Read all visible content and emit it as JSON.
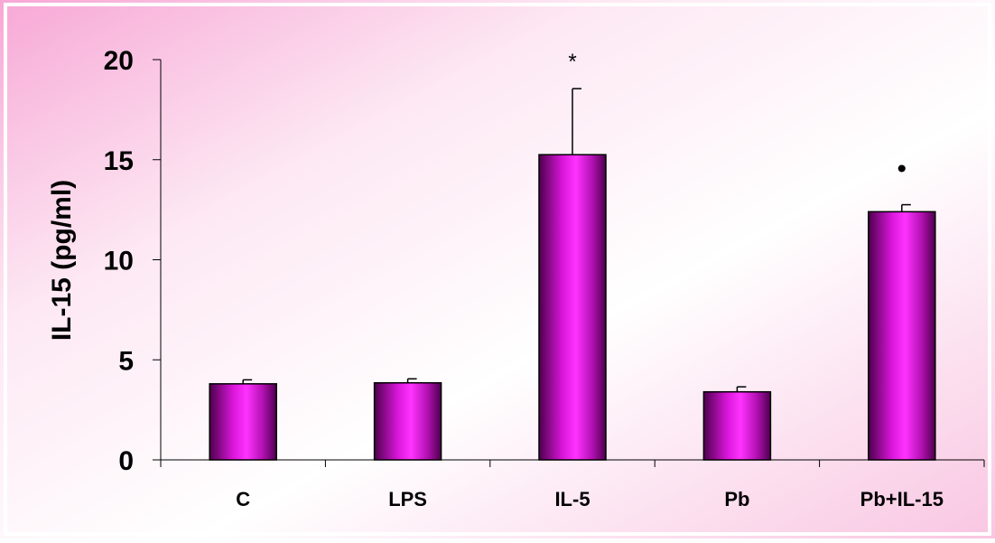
{
  "chart_data": {
    "type": "bar",
    "categories": [
      "C",
      "LPS",
      "IL-5",
      "Pb",
      "Pb+IL-15"
    ],
    "values": [
      3.8,
      3.85,
      15.25,
      3.4,
      12.4
    ],
    "errors": [
      0.2,
      0.2,
      3.3,
      0.25,
      0.35
    ],
    "annotations": [
      "",
      "",
      "*",
      "",
      "•"
    ],
    "ylabel": "IL-15 (pg/ml)",
    "ylim": [
      0,
      20
    ],
    "yticks": [
      "0",
      "5",
      "10",
      "15",
      "20"
    ],
    "grid": false,
    "colors": {
      "bar_light": "#ff33ff",
      "bar_mid": "#d916d9",
      "bar_dark": "#4d004d",
      "bar_stroke": "#000000",
      "bg_pink": "#f7a8d6",
      "bg_white": "#ffffff"
    }
  }
}
